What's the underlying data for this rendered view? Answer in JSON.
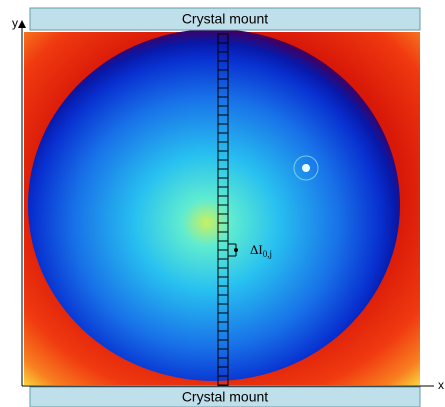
{
  "top_label": "Crystal mount",
  "bottom_label": "Crystal mount",
  "y_axis_label": "y",
  "x_axis_label": "x",
  "cell_label": {
    "main": "ΔI",
    "sub": "0,j"
  }
}
